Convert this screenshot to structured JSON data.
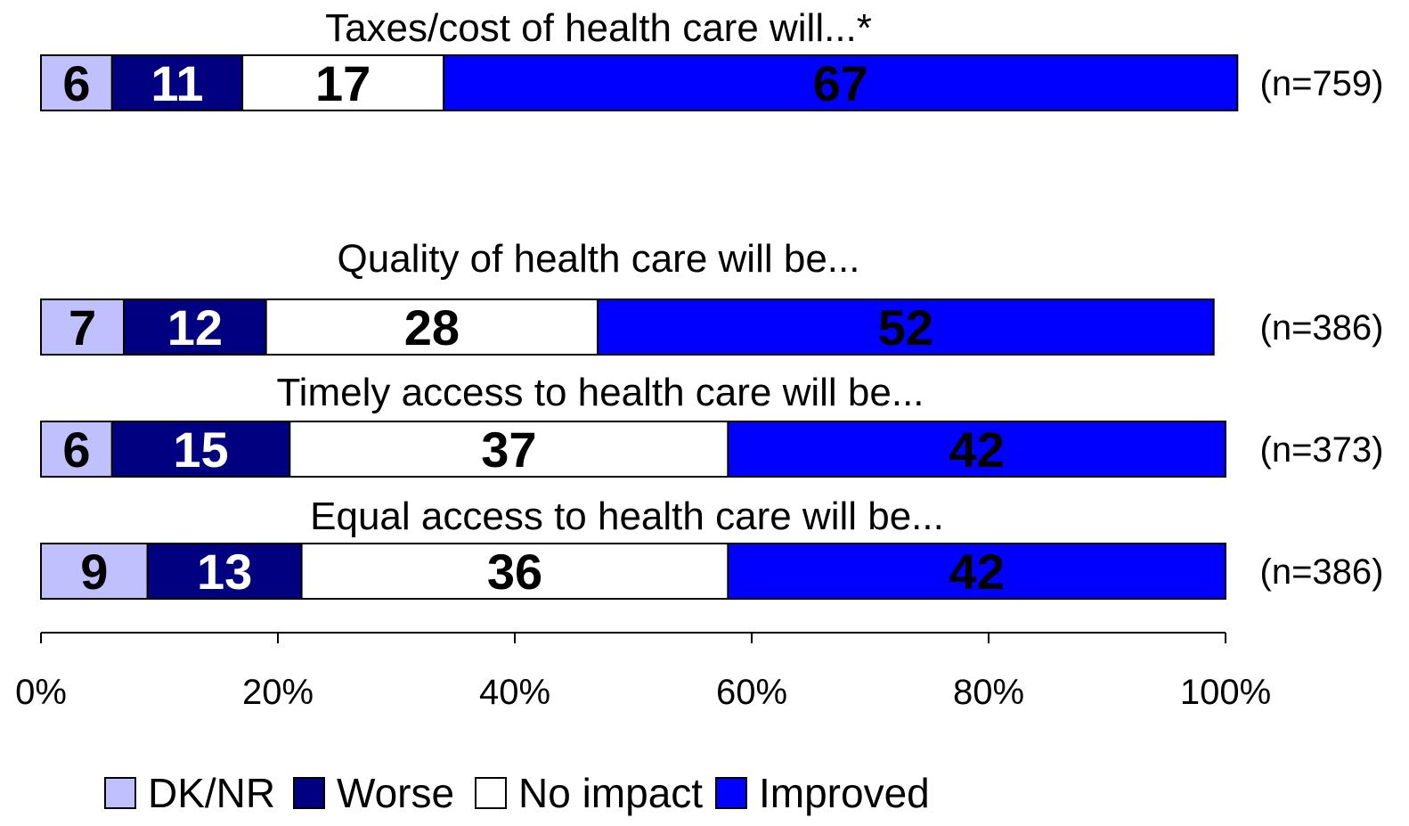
{
  "chart_data": {
    "type": "bar",
    "orientation": "horizontal",
    "stacked": true,
    "rows": [
      {
        "title": "Taxes/cost of health care will...*",
        "n_label": "(n=759)",
        "values": [
          6,
          11,
          17,
          67
        ]
      },
      {
        "title": "Quality of health care will be...",
        "n_label": "(n=386)",
        "values": [
          7,
          12,
          28,
          52
        ]
      },
      {
        "title": "Timely access to health care will be...",
        "n_label": "(n=373)",
        "values": [
          6,
          15,
          37,
          42
        ]
      },
      {
        "title": "Equal access to health care will be...",
        "n_label": "(n=386)",
        "values": [
          9,
          13,
          36,
          42
        ]
      }
    ],
    "series": [
      {
        "name": "DK/NR",
        "color": "#c0c0ff",
        "label_color": "#000000"
      },
      {
        "name": "Worse",
        "color": "#000080",
        "label_color": "#ffffff"
      },
      {
        "name": "No impact",
        "color": "#ffffff",
        "label_color": "#000000"
      },
      {
        "name": "Improved",
        "color": "#0000ff",
        "label_color": "#000000"
      }
    ],
    "xlim": [
      0,
      100
    ],
    "xticks": [
      0,
      20,
      40,
      60,
      80,
      100
    ],
    "xtick_labels": [
      "0%",
      "20%",
      "40%",
      "60%",
      "80%",
      "100%"
    ],
    "legend_position": "bottom",
    "grid": false
  }
}
